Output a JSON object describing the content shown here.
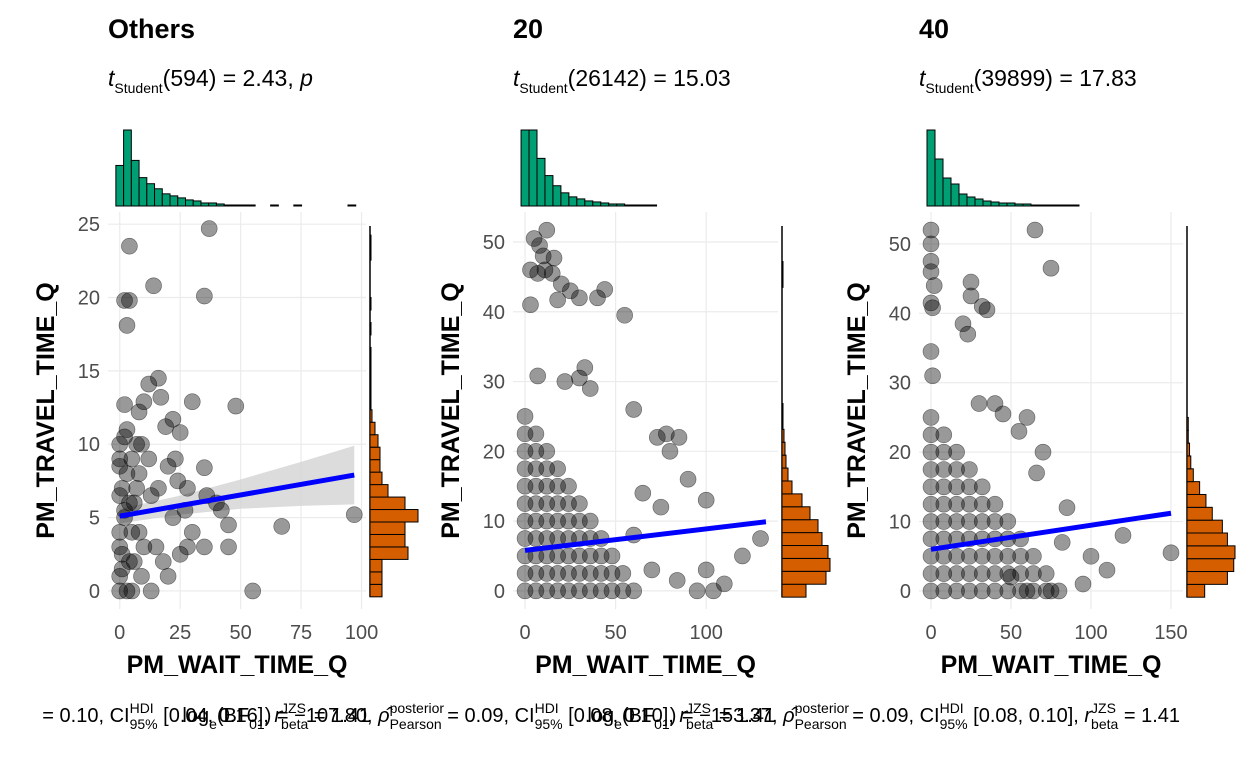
{
  "chart_data": [
    {
      "type": "scatter",
      "title": "Others",
      "subtitle": [
        {
          "text": "t",
          "style": "italic"
        },
        {
          "sub": "Student"
        },
        {
          "text": "(594) = 2.43, "
        },
        {
          "text": "p",
          "style": "italic"
        }
      ],
      "caption": [
        {
          "text": " = 0.10, CI"
        },
        {
          "sup": "HDI"
        },
        {
          "sub": "95%"
        },
        {
          "text": " [0.04, 0.16], "
        },
        {
          "text": "r",
          "style": "italic"
        },
        {
          "sup": "JZS"
        },
        {
          "sub": "beta"
        },
        {
          "text": " = 1.41"
        }
      ],
      "x_label": "PM_WAIT_TIME_Q",
      "y_label": "PM_TRAVEL_TIME_Q",
      "xlim": [
        -4.85,
        101.85
      ],
      "ylim": [
        -1.23,
        25.83
      ],
      "xticks": [
        0,
        25,
        50,
        75,
        100
      ],
      "yticks": [
        0,
        5,
        10,
        15,
        20,
        25
      ],
      "grid": true,
      "point_color": "#000000",
      "x": [
        37,
        4,
        2,
        4,
        35,
        14,
        3,
        17,
        16,
        12,
        10,
        30,
        48,
        22,
        19,
        8,
        25,
        35,
        42,
        55,
        67,
        97,
        45,
        40,
        28,
        20,
        13,
        10,
        6,
        3,
        0,
        2,
        1,
        0,
        3,
        5,
        8,
        15,
        18,
        25,
        30,
        35,
        22,
        12,
        7,
        0,
        1,
        4,
        9,
        16,
        28,
        36,
        45,
        5,
        13,
        20,
        23,
        27,
        9,
        2,
        0,
        24,
        0,
        1,
        0,
        2,
        0,
        3,
        0,
        2,
        5,
        6,
        4,
        8,
        7
      ],
      "y": [
        24.7,
        23.5,
        19.8,
        19.8,
        20.1,
        20.8,
        18.1,
        13.2,
        14.5,
        14.1,
        12.9,
        12.9,
        12.6,
        11.7,
        11.2,
        12.2,
        10.8,
        8.4,
        5.5,
        0,
        4.4,
        5.2,
        4.5,
        6,
        7,
        8.5,
        6.5,
        3,
        2,
        0,
        0,
        5,
        7,
        10,
        11,
        9,
        4,
        3,
        2,
        2.5,
        4,
        3,
        5,
        9,
        7,
        3,
        1.5,
        6,
        10,
        7,
        3,
        6.5,
        3,
        0,
        0,
        1,
        9,
        5.5,
        1,
        12.7,
        8.5,
        7.5,
        1,
        2.5,
        4,
        5.5,
        6.5,
        8,
        9,
        10.5,
        4,
        6,
        2,
        8,
        10
      ],
      "line": {
        "x": [
          0,
          97
        ],
        "y": [
          5.1,
          7.9
        ],
        "color": "#0000ff"
      },
      "band": {
        "x": [
          0,
          25,
          50,
          75,
          97
        ],
        "lower": [
          4.6,
          5.2,
          5.6,
          5.8,
          5.9
        ],
        "upper": [
          5.6,
          6.5,
          7.6,
          8.8,
          9.9
        ],
        "color": "#d3d3d3"
      },
      "top_histogram": {
        "color": "#009e73",
        "bins": [
          -1.6,
          1.6,
          4.8,
          8,
          11.2,
          14.4,
          17.6,
          20.8,
          24,
          27.2,
          30.4,
          33.6,
          36.8,
          40,
          43.2,
          46.4,
          49.6,
          52.8,
          56,
          59.2,
          62.4,
          65.6,
          68.8,
          72,
          75.2,
          78.4,
          81.6,
          84.8,
          88,
          91.2,
          94.4,
          97.6
        ],
        "counts": [
          40,
          75,
          45,
          28,
          22,
          17,
          12,
          10,
          8,
          6,
          5,
          3,
          3,
          2,
          1,
          1,
          1,
          1,
          0,
          0,
          1,
          0,
          0,
          1,
          0,
          0,
          0,
          0,
          0,
          0,
          1
        ]
      },
      "right_histogram": {
        "color": "#d55e00",
        "bins": [
          -0.4,
          0.45,
          1.3,
          2.15,
          3,
          3.85,
          4.7,
          5.55,
          6.4,
          7.25,
          8.1,
          8.95,
          9.8,
          10.65,
          11.5,
          12.35,
          13.2,
          14.05,
          14.9,
          15.75,
          16.6,
          17.45,
          18.3,
          19.15,
          20,
          20.85,
          21.7,
          22.55,
          23.4,
          24.25
        ],
        "counts": [
          12,
          12,
          12,
          38,
          35,
          35,
          48,
          35,
          18,
          12,
          10,
          10,
          8,
          5,
          2,
          1,
          1,
          1,
          1,
          1,
          0,
          1,
          0,
          1,
          0,
          0,
          0,
          1,
          1
        ]
      }
    },
    {
      "type": "scatter",
      "title": "20",
      "subtitle": [
        {
          "text": "t",
          "style": "italic"
        },
        {
          "sub": "Student"
        },
        {
          "text": "(26142) = 15.03"
        }
      ],
      "caption": [
        {
          "text": "log"
        },
        {
          "sub": "e"
        },
        {
          "text": "(BF"
        },
        {
          "sub": "01"
        },
        {
          "text": ") = −107.80, "
        },
        {
          "text": "ρ̂",
          "style": "italic"
        },
        {
          "sup": "posterior"
        },
        {
          "sub": "Pearson"
        },
        {
          "text": " = 0.09, CI"
        },
        {
          "sup": "HDI"
        },
        {
          "sub": "95%"
        },
        {
          "text": " [0.08, 0.10], "
        },
        {
          "text": "r",
          "style": "italic"
        },
        {
          "sup": "JZS"
        },
        {
          "sub": "beta"
        },
        {
          "text": " = 1.41"
        }
      ],
      "x_label": "PM_WAIT_TIME_Q",
      "y_label": "PM_TRAVEL_TIME_Q",
      "xlim": [
        -6.65,
        139.65
      ],
      "ylim": [
        -2.6,
        54.3
      ],
      "xticks": [
        0,
        50,
        100
      ],
      "yticks": [
        0,
        10,
        20,
        30,
        40,
        50
      ],
      "grid": true,
      "point_color": "#000000",
      "x": [
        5,
        8,
        12,
        10,
        3,
        7,
        11,
        15,
        16,
        20,
        25,
        30,
        44,
        18,
        3,
        55,
        40,
        33,
        36,
        7,
        22,
        30,
        60,
        78,
        85,
        73,
        90,
        100,
        130,
        120,
        100,
        110,
        84,
        104,
        95,
        70,
        60,
        65,
        75,
        80,
        0,
        6,
        12,
        18,
        24,
        30,
        36,
        42,
        48,
        54,
        60,
        0,
        6,
        12,
        18,
        24,
        30,
        36,
        42,
        48,
        54,
        0,
        6,
        12,
        18,
        24,
        30,
        36,
        42,
        48,
        0,
        6,
        12,
        18,
        24,
        30,
        36,
        42,
        0,
        6,
        12,
        18,
        24,
        30,
        36,
        0,
        6,
        12,
        18,
        24,
        30,
        0,
        6,
        12,
        18,
        24,
        0,
        6,
        12,
        18,
        0,
        6,
        12,
        0,
        6,
        0
      ],
      "y": [
        50.5,
        49.5,
        51.7,
        48,
        46,
        45.5,
        46,
        45.5,
        47.7,
        44,
        43,
        42,
        43.2,
        41.7,
        41,
        39.5,
        42,
        32,
        29,
        30.8,
        30,
        30.5,
        26,
        22.5,
        22,
        22,
        16,
        13,
        7.5,
        5,
        3,
        1,
        1.5,
        0,
        0,
        3,
        8,
        14,
        12,
        20,
        0,
        0,
        0,
        0,
        0,
        0,
        0,
        0,
        0,
        0,
        0,
        2.5,
        2.5,
        2.5,
        2.5,
        2.5,
        2.5,
        2.5,
        2.5,
        2.5,
        2.5,
        5,
        5,
        5,
        5,
        5,
        5,
        5,
        5,
        5,
        7.5,
        7.5,
        7.5,
        7.5,
        7.5,
        7.5,
        7.5,
        7.5,
        10,
        10,
        10,
        10,
        10,
        10,
        10,
        12.5,
        12.5,
        12.5,
        12.5,
        12.5,
        12.5,
        15,
        15,
        15,
        15,
        15,
        17.5,
        17.5,
        17.5,
        17.5,
        20,
        20,
        20,
        22.5,
        22.5,
        25
      ],
      "line": {
        "x": [
          0,
          133
        ],
        "y": [
          5.8,
          9.9
        ],
        "color": "#0000ff"
      },
      "top_histogram": {
        "color": "#009e73",
        "bins": [
          -2.2,
          2.2,
          6.6,
          11,
          15.4,
          19.8,
          24.2,
          28.6,
          33,
          37.4,
          41.8,
          46.2,
          50.6,
          55,
          59.4,
          63.8,
          68.2,
          72.6,
          77,
          81.4,
          85.8,
          90.2,
          94.6,
          99,
          103.4,
          107.8,
          112.2,
          116.6,
          121,
          125.4,
          129.8
        ],
        "counts": [
          75,
          75,
          47,
          30,
          20,
          13,
          9,
          7,
          5,
          4,
          3,
          2,
          2,
          1,
          1,
          1,
          1,
          0,
          0,
          0,
          0,
          0,
          0,
          0,
          0,
          0,
          0,
          0,
          0,
          0
        ]
      },
      "right_histogram": {
        "color": "#d55e00",
        "bins": [
          -0.9,
          0.95,
          2.8,
          4.65,
          6.5,
          8.35,
          10.2,
          12.05,
          13.9,
          15.75,
          17.6,
          19.45,
          21.3,
          23.15,
          25,
          26.85,
          28.7,
          30.55,
          32.4,
          34.25,
          36.1,
          37.95,
          39.8,
          41.65,
          43.5,
          45.35,
          47.2,
          49.05,
          50.9,
          52.75
        ],
        "counts": [
          24,
          44,
          48,
          46,
          40,
          36,
          28,
          20,
          10,
          6,
          4,
          3,
          2,
          1,
          1,
          0,
          0,
          0,
          0,
          0,
          0,
          0,
          0,
          0,
          1,
          1,
          0,
          0,
          0
        ]
      }
    },
    {
      "type": "scatter",
      "title": "40",
      "subtitle": [
        {
          "text": "t",
          "style": "italic"
        },
        {
          "sub": "Student"
        },
        {
          "text": "(39899) = 17.83"
        }
      ],
      "caption": [
        {
          "text": "log"
        },
        {
          "sub": "e"
        },
        {
          "text": "(BF"
        },
        {
          "sub": "01"
        },
        {
          "text": ") = −153.37, "
        },
        {
          "text": "ρ̂",
          "style": "italic"
        },
        {
          "sup": "posterior"
        },
        {
          "sub": "Pearson"
        },
        {
          "text": " = 0.09, CI"
        },
        {
          "sup": "HDI"
        },
        {
          "sub": "95%"
        },
        {
          "text": " [0.08, 0.10], "
        },
        {
          "text": "r",
          "style": "italic"
        },
        {
          "sup": "JZS"
        },
        {
          "sub": "beta"
        },
        {
          "text": " = 1.41"
        }
      ],
      "x_label": "PM_WAIT_TIME_Q",
      "y_label": "PM_TRAVEL_TIME_Q",
      "xlim": [
        -7.5,
        157.5
      ],
      "ylim": [
        -2.6,
        54.6
      ],
      "xticks": [
        0,
        50,
        100,
        150
      ],
      "yticks": [
        0,
        10,
        20,
        30,
        40,
        50
      ],
      "grid": true,
      "point_color": "#000000",
      "x": [
        0,
        0,
        0,
        0,
        2,
        0,
        1,
        25,
        25,
        32,
        35,
        20,
        23,
        0,
        1,
        65,
        75,
        60,
        70,
        85,
        100,
        120,
        150,
        110,
        95,
        50,
        60,
        75,
        82,
        66,
        55,
        45,
        40,
        30,
        0,
        8,
        16,
        24,
        32,
        40,
        48,
        56,
        64,
        72,
        80,
        0,
        8,
        16,
        24,
        32,
        40,
        48,
        56,
        64,
        72,
        0,
        8,
        16,
        24,
        32,
        40,
        48,
        56,
        64,
        0,
        8,
        16,
        24,
        32,
        40,
        48,
        56,
        0,
        8,
        16,
        24,
        32,
        40,
        48,
        0,
        8,
        16,
        24,
        32,
        40,
        0,
        8,
        16,
        24,
        32,
        0,
        8,
        16,
        24,
        0,
        8,
        16,
        0,
        8,
        0
      ],
      "y": [
        52,
        50,
        47.5,
        46,
        44,
        41.5,
        40.8,
        44.5,
        42.5,
        41,
        40.5,
        38.5,
        37,
        34.5,
        31,
        52,
        46.5,
        25,
        20,
        12,
        5,
        8,
        5.5,
        3,
        1,
        2,
        0,
        0,
        7,
        17,
        23,
        25.5,
        27,
        27,
        0,
        0,
        0,
        0,
        0,
        0,
        0,
        0,
        0,
        0,
        0,
        2.5,
        2.5,
        2.5,
        2.5,
        2.5,
        2.5,
        2.5,
        2.5,
        2.5,
        2.5,
        5,
        5,
        5,
        5,
        5,
        5,
        5,
        5,
        5,
        7.5,
        7.5,
        7.5,
        7.5,
        7.5,
        7.5,
        7.5,
        7.5,
        10,
        10,
        10,
        10,
        10,
        10,
        10,
        12.5,
        12.5,
        12.5,
        12.5,
        12.5,
        12.5,
        15,
        15,
        15,
        15,
        15,
        17.5,
        17.5,
        17.5,
        17.5,
        20,
        20,
        20,
        22.5,
        22.5,
        25
      ],
      "line": {
        "x": [
          0,
          150
        ],
        "y": [
          6.0,
          11.2
        ],
        "color": "#0000ff"
      },
      "top_histogram": {
        "color": "#009e73",
        "bins": [
          -2.5,
          2.5,
          7.5,
          12.5,
          17.5,
          22.5,
          27.5,
          32.5,
          37.5,
          42.5,
          47.5,
          52.5,
          57.5,
          62.5,
          67.5,
          72.5,
          77.5,
          82.5,
          87.5,
          92.5,
          97.5,
          102.5,
          107.5,
          112.5,
          117.5,
          122.5,
          127.5,
          132.5,
          137.5,
          142.5,
          147.5,
          152.5
        ],
        "counts": [
          76,
          47,
          28,
          22,
          12,
          9,
          7,
          5,
          4,
          3,
          3,
          2,
          2,
          1,
          1,
          1,
          1,
          1,
          1,
          0,
          0,
          0,
          0,
          0,
          0,
          0,
          0,
          0,
          0,
          0,
          0
        ]
      },
      "right_histogram": {
        "color": "#d55e00",
        "bins": [
          -0.9,
          0.95,
          2.8,
          4.65,
          6.5,
          8.35,
          10.2,
          12.05,
          13.9,
          15.75,
          17.6,
          19.45,
          21.3,
          23.15,
          25,
          26.85,
          28.7,
          30.55,
          32.4,
          34.25,
          36.1,
          37.95,
          39.8,
          41.65,
          43.5,
          45.35,
          47.2,
          49.05,
          50.9,
          52.75
        ],
        "counts": [
          14,
          32,
          37,
          38,
          32,
          28,
          20,
          15,
          10,
          5,
          3,
          2,
          1,
          1,
          0,
          0,
          0,
          0,
          0,
          0,
          0,
          0,
          0,
          0,
          0,
          0,
          0,
          0,
          0
        ]
      }
    }
  ]
}
